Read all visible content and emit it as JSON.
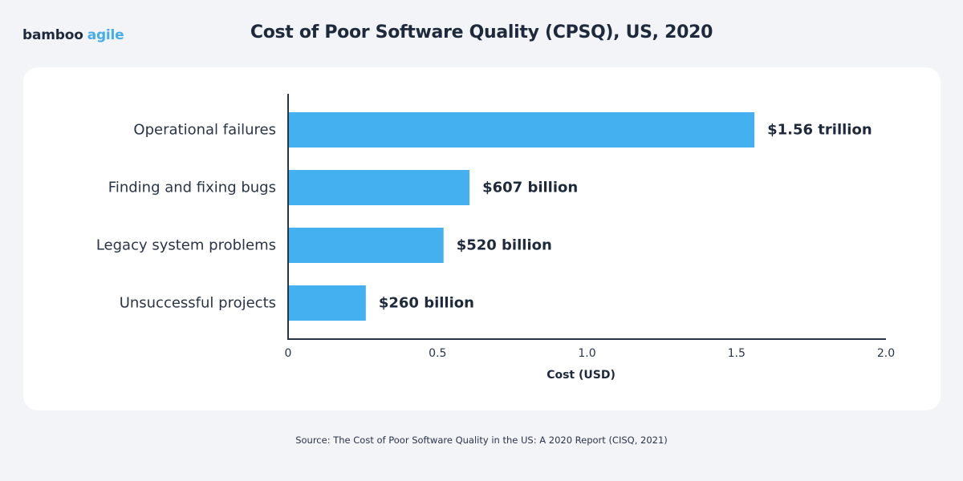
{
  "brand": {
    "name_part1": "bamboo",
    "name_part2": "agile",
    "accent_color": "#45ade8",
    "dark_color": "#1e2a3c"
  },
  "header": {
    "title": "Cost of Poor Software Quality (CPSQ), US, 2020"
  },
  "footer": {
    "source": "Source: The Cost of Poor Software Quality in the US: A 2020 Report (CISQ, 2021)"
  },
  "chart_data": {
    "type": "bar",
    "orientation": "horizontal",
    "title": "Cost of Poor Software Quality (CPSQ), US, 2020",
    "xlabel": "Cost (USD)",
    "ylabel": "",
    "xlim": [
      0,
      2.0
    ],
    "x_ticks": [
      "0",
      "0.5",
      "1.0",
      "1.5",
      "2.0"
    ],
    "x_tick_values": [
      0,
      0.5,
      1.0,
      1.5,
      2.0
    ],
    "grid": false,
    "bar_color": "#45b0f0",
    "categories": [
      "Operational failures",
      "Finding and fixing bugs",
      "Legacy system problems",
      "Unsuccessful projects"
    ],
    "values": [
      1.56,
      0.607,
      0.52,
      0.26
    ],
    "value_labels": [
      "$1.56 trillion",
      "$607 billion",
      "$520 billion",
      "$260 billion"
    ]
  }
}
